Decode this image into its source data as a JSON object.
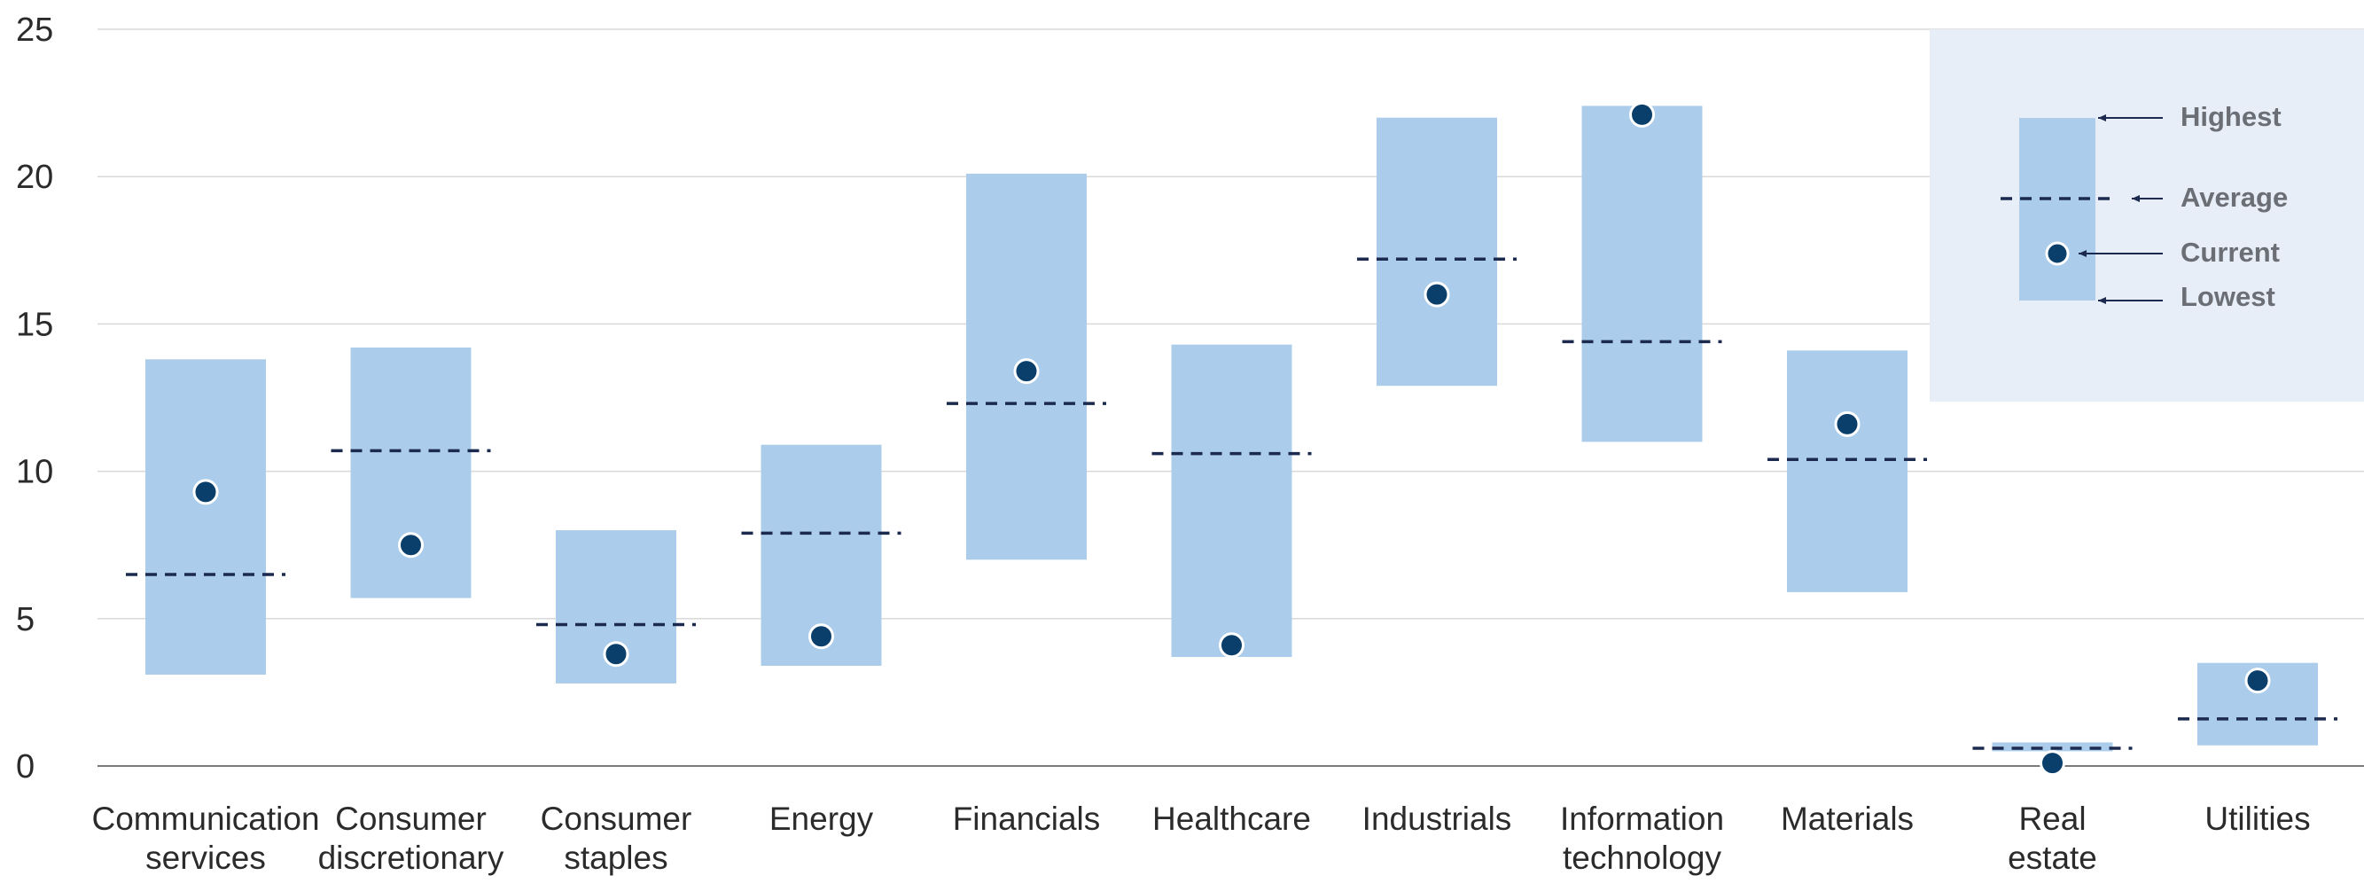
{
  "chart_data": {
    "type": "range",
    "title": "",
    "xlabel": "",
    "ylabel": "",
    "ylim": [
      0,
      25
    ],
    "yticks": [
      0,
      5,
      10,
      15,
      20,
      25
    ],
    "grid": true,
    "categories": [
      [
        "Communication",
        "services"
      ],
      [
        "Consumer",
        "discretionary"
      ],
      [
        "Consumer",
        "staples"
      ],
      [
        "Energy"
      ],
      [
        "Financials"
      ],
      [
        "Healthcare"
      ],
      [
        "Industrials"
      ],
      [
        "Information",
        "technology"
      ],
      [
        "Materials"
      ],
      [
        "Real",
        "estate"
      ],
      [
        "Utilities"
      ]
    ],
    "series": {
      "lowest": [
        3.1,
        5.7,
        2.8,
        3.4,
        7.0,
        3.7,
        12.9,
        11.0,
        5.9,
        0.5,
        0.7
      ],
      "highest": [
        13.8,
        14.2,
        8.0,
        10.9,
        20.1,
        14.3,
        22.0,
        22.4,
        14.1,
        0.8,
        3.5
      ],
      "average": [
        6.5,
        10.7,
        4.8,
        7.9,
        12.3,
        10.6,
        17.2,
        14.4,
        10.4,
        0.6,
        1.6
      ],
      "current": [
        9.3,
        7.5,
        3.8,
        4.4,
        13.4,
        4.1,
        16.0,
        22.1,
        11.6,
        0.1,
        2.9
      ]
    },
    "legend": {
      "position": "top-right",
      "labels": {
        "highest": "Highest",
        "average": "Average",
        "current": "Current",
        "lowest": "Lowest"
      }
    },
    "colors": {
      "range_bar": "#abcdeb",
      "average_line": "#1b2a4e",
      "current_dot": "#0b3f6b",
      "gridline": "#d9d9d9",
      "legend_bg": "#e7eef8",
      "legend_text": "#6b6f75",
      "axis": "#7a7a7a"
    }
  }
}
